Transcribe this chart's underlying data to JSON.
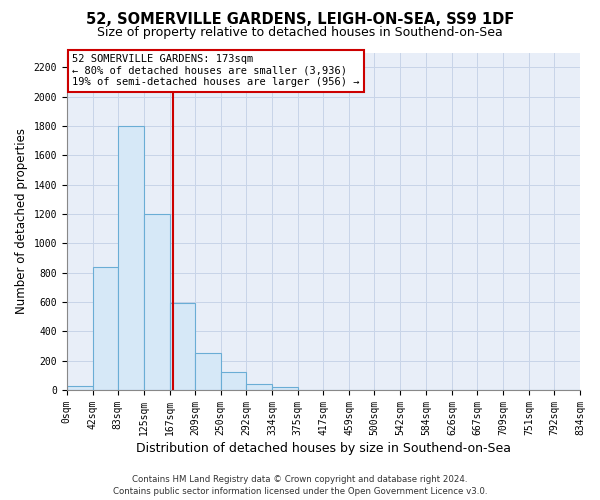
{
  "title": "52, SOMERVILLE GARDENS, LEIGH-ON-SEA, SS9 1DF",
  "subtitle": "Size of property relative to detached houses in Southend-on-Sea",
  "xlabel": "Distribution of detached houses by size in Southend-on-Sea",
  "ylabel": "Number of detached properties",
  "bar_edges": [
    0,
    42,
    83,
    125,
    167,
    209,
    250,
    292,
    334,
    375,
    417,
    459,
    500,
    542,
    584,
    626,
    667,
    709,
    751,
    792,
    834
  ],
  "bar_heights": [
    25,
    840,
    1800,
    1200,
    590,
    255,
    120,
    40,
    20,
    0,
    0,
    0,
    0,
    0,
    0,
    0,
    0,
    0,
    0,
    0
  ],
  "bar_color": "#d6e8f7",
  "bar_edge_color": "#6aadd5",
  "vline_x": 173,
  "vline_color": "#cc0000",
  "annotation_title": "52 SOMERVILLE GARDENS: 173sqm",
  "annotation_line1": "← 80% of detached houses are smaller (3,936)",
  "annotation_line2": "19% of semi-detached houses are larger (956) →",
  "annotation_box_facecolor": "#ffffff",
  "annotation_box_edgecolor": "#cc0000",
  "ylim": [
    0,
    2300
  ],
  "ytick_step": 200,
  "tick_labels": [
    "0sqm",
    "42sqm",
    "83sqm",
    "125sqm",
    "167sqm",
    "209sqm",
    "250sqm",
    "292sqm",
    "334sqm",
    "375sqm",
    "417sqm",
    "459sqm",
    "500sqm",
    "542sqm",
    "584sqm",
    "626sqm",
    "667sqm",
    "709sqm",
    "751sqm",
    "792sqm",
    "834sqm"
  ],
  "grid_color": "#c8d4e8",
  "plot_bg_color": "#e8eef8",
  "fig_bg_color": "#ffffff",
  "footer_line1": "Contains HM Land Registry data © Crown copyright and database right 2024.",
  "footer_line2": "Contains public sector information licensed under the Open Government Licence v3.0.",
  "title_fontsize": 10.5,
  "subtitle_fontsize": 9,
  "xlabel_fontsize": 9,
  "ylabel_fontsize": 8.5,
  "tick_fontsize": 7,
  "annot_fontsize": 7.5,
  "footer_fontsize": 6.2
}
